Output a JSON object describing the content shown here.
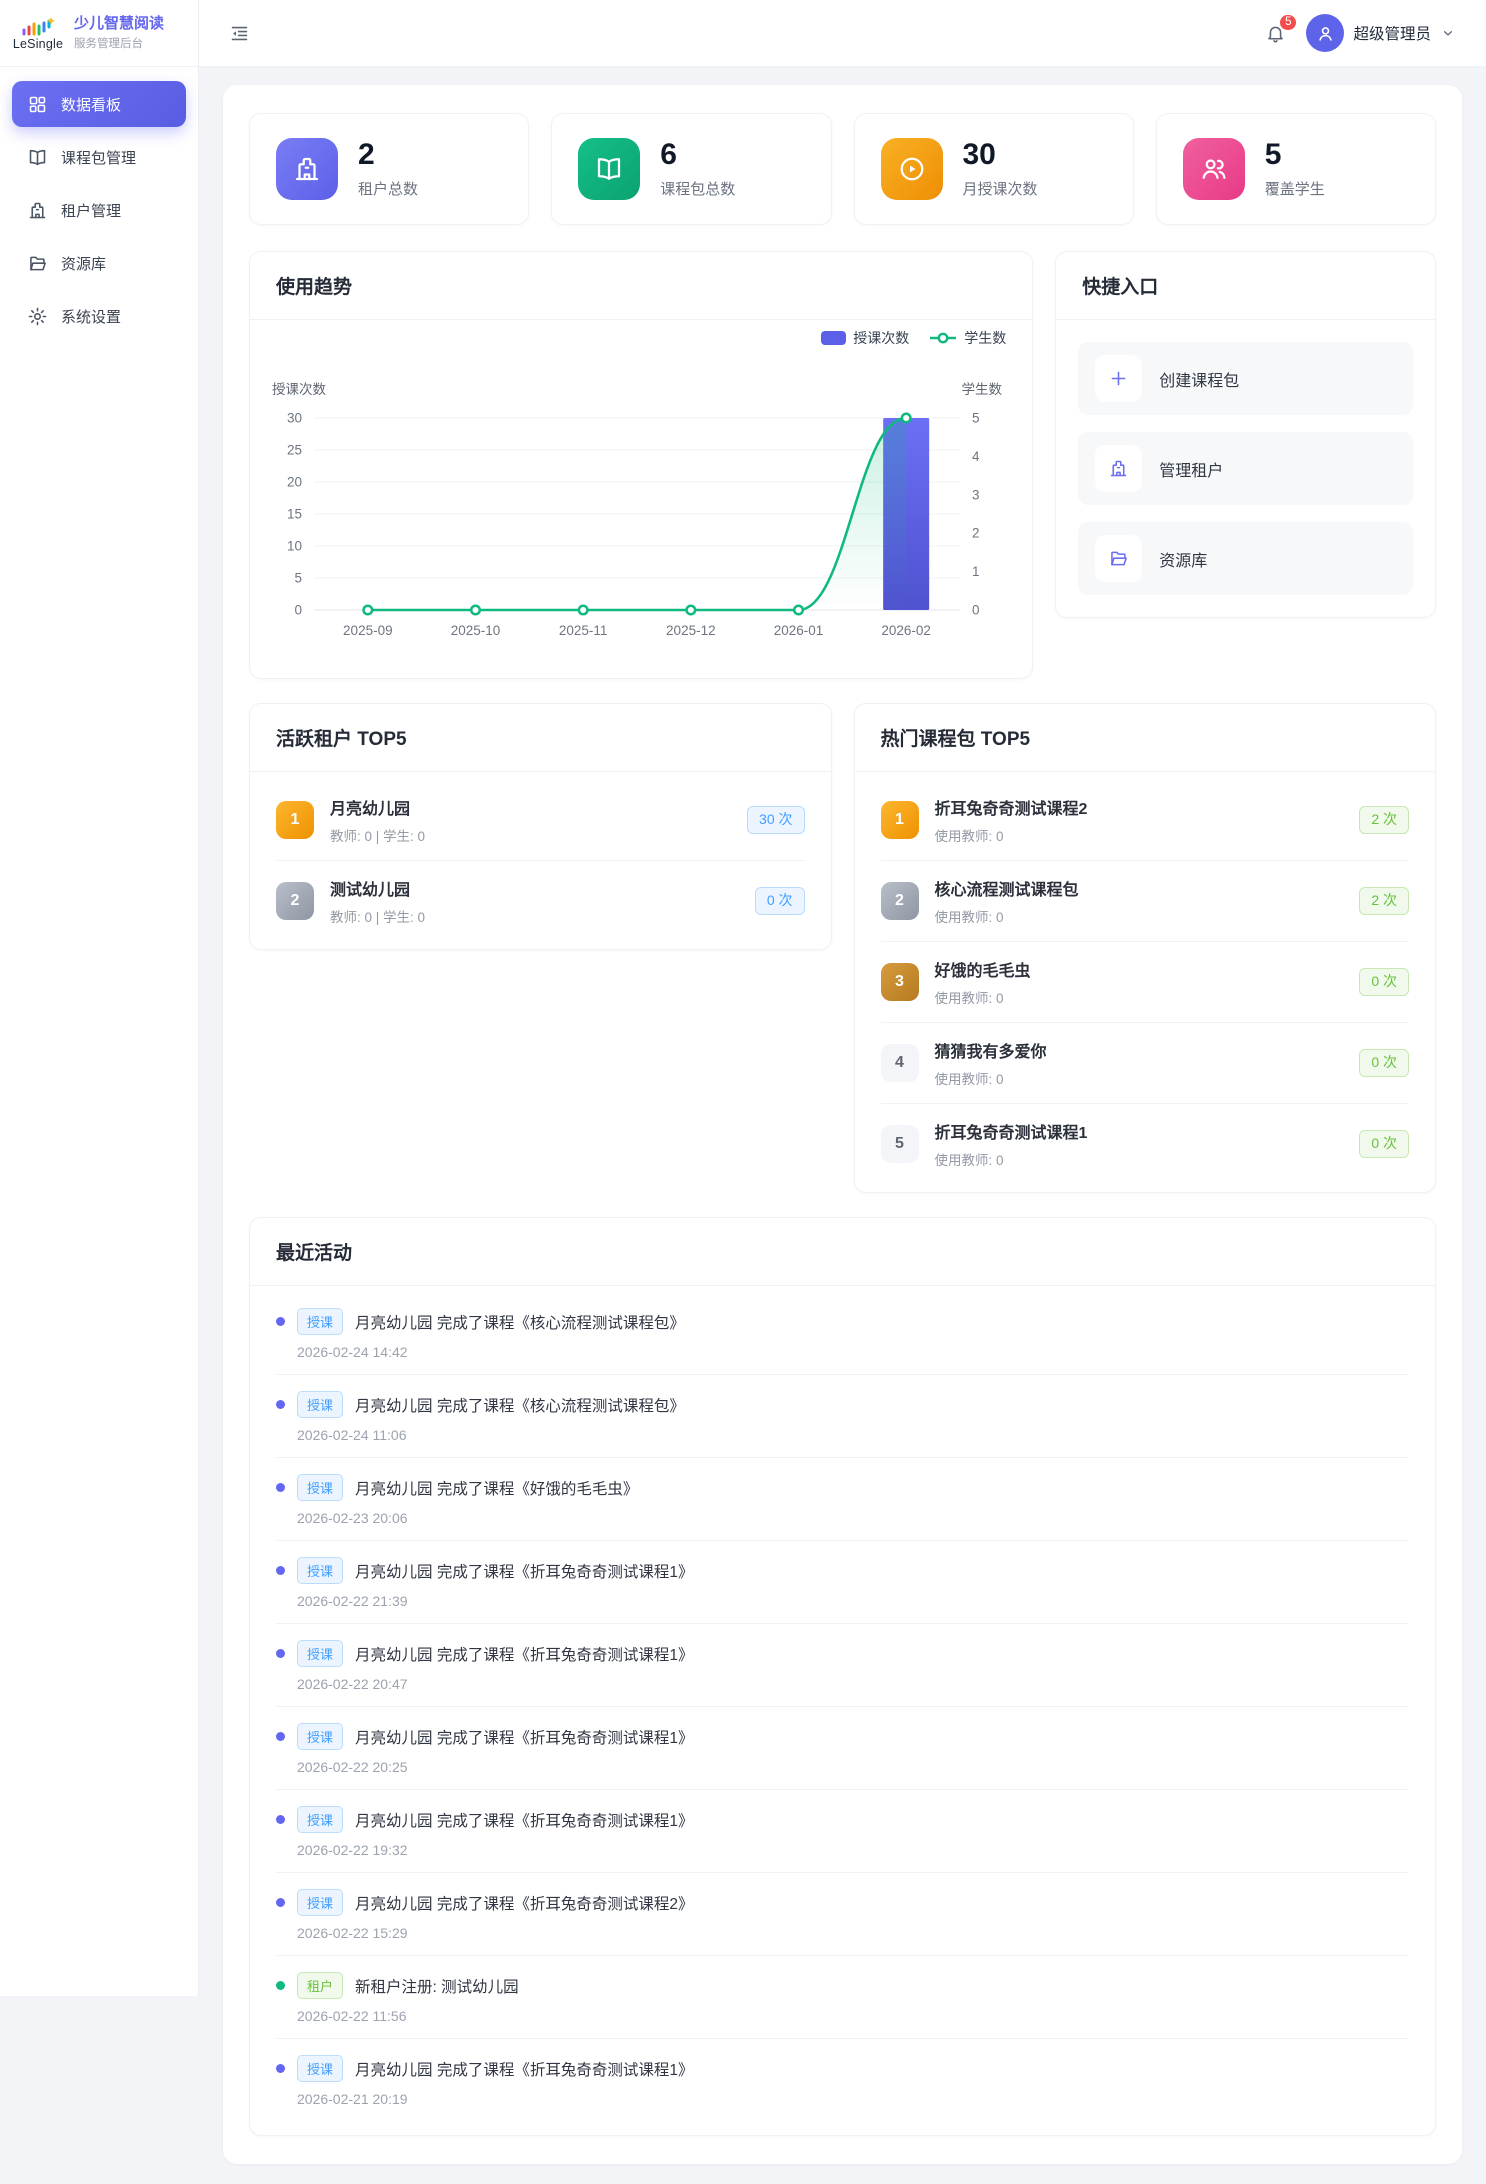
{
  "brand": {
    "logo_text": "LeSingle",
    "title": "少儿智慧阅读",
    "subtitle": "服务管理后台"
  },
  "header": {
    "notification_count": "5",
    "username": "超级管理员"
  },
  "sidebar": {
    "items": [
      {
        "label": "数据看板",
        "icon": "dashboard",
        "active": true
      },
      {
        "label": "课程包管理",
        "icon": "book",
        "active": false
      },
      {
        "label": "租户管理",
        "icon": "building",
        "active": false
      },
      {
        "label": "资源库",
        "icon": "folder",
        "active": false
      },
      {
        "label": "系统设置",
        "icon": "gear",
        "active": false
      }
    ]
  },
  "stats": [
    {
      "value": "2",
      "label": "租户总数",
      "icon": "building",
      "color": "#7a7df4",
      "color2": "#5c60e8"
    },
    {
      "value": "6",
      "label": "课程包总数",
      "icon": "book",
      "color": "#14c08a",
      "color2": "#0ca171"
    },
    {
      "value": "30",
      "label": "月授课次数",
      "icon": "play",
      "color": "#f9b125",
      "color2": "#ee8e04"
    },
    {
      "value": "5",
      "label": "覆盖学生",
      "icon": "users",
      "color": "#f0609f",
      "color2": "#e83a87"
    }
  ],
  "usage_trend": {
    "title": "使用趋势"
  },
  "chart_data": {
    "type": "bar+line",
    "title": "使用趋势",
    "categories": [
      "2025-09",
      "2025-10",
      "2025-11",
      "2025-12",
      "2026-01",
      "2026-02"
    ],
    "series": [
      {
        "name": "授课次数",
        "type": "bar",
        "axis": "left",
        "color": "#5c60e8",
        "values": [
          0,
          0,
          0,
          0,
          0,
          30
        ]
      },
      {
        "name": "学生数",
        "type": "line",
        "axis": "right",
        "color": "#10b981",
        "values": [
          0,
          0,
          0,
          0,
          0,
          5
        ]
      }
    ],
    "left_axis": {
      "name": "授课次数",
      "min": 0,
      "max": 30,
      "ticks": [
        0,
        5,
        10,
        15,
        20,
        25,
        30
      ]
    },
    "right_axis": {
      "name": "学生数",
      "min": 0,
      "max": 5,
      "ticks": [
        0,
        1,
        2,
        3,
        4,
        5
      ]
    },
    "legend_position": "top-right",
    "grid": true
  },
  "quick_entry": {
    "title": "快捷入口",
    "items": [
      {
        "label": "创建课程包",
        "icon": "plus"
      },
      {
        "label": "管理租户",
        "icon": "building"
      },
      {
        "label": "资源库",
        "icon": "folder"
      }
    ]
  },
  "active_tenants": {
    "title": "活跃租户 TOP5",
    "items": [
      {
        "rank": "1",
        "name": "月亮幼儿园",
        "meta": "教师: 0 | 学生: 0",
        "count": "30 次"
      },
      {
        "rank": "2",
        "name": "测试幼儿园",
        "meta": "教师: 0 | 学生: 0",
        "count": "0 次"
      }
    ]
  },
  "hot_packages": {
    "title": "热门课程包 TOP5",
    "items": [
      {
        "rank": "1",
        "name": "折耳兔奇奇测试课程2",
        "meta": "使用教师: 0",
        "count": "2 次"
      },
      {
        "rank": "2",
        "name": "核心流程测试课程包",
        "meta": "使用教师: 0",
        "count": "2 次"
      },
      {
        "rank": "3",
        "name": "好饿的毛毛虫",
        "meta": "使用教师: 0",
        "count": "0 次"
      },
      {
        "rank": "4",
        "name": "猜猜我有多爱你",
        "meta": "使用教师: 0",
        "count": "0 次"
      },
      {
        "rank": "5",
        "name": "折耳兔奇奇测试课程1",
        "meta": "使用教师: 0",
        "count": "0 次"
      }
    ]
  },
  "recent_activities": {
    "title": "最近活动",
    "items": [
      {
        "tag": "授课",
        "type": "primary",
        "message": "月亮幼儿园 完成了课程《核心流程测试课程包》",
        "time": "2026-02-24 14:42"
      },
      {
        "tag": "授课",
        "type": "primary",
        "message": "月亮幼儿园 完成了课程《核心流程测试课程包》",
        "time": "2026-02-24 11:06"
      },
      {
        "tag": "授课",
        "type": "primary",
        "message": "月亮幼儿园 完成了课程《好饿的毛毛虫》",
        "time": "2026-02-23 20:06"
      },
      {
        "tag": "授课",
        "type": "primary",
        "message": "月亮幼儿园 完成了课程《折耳兔奇奇测试课程1》",
        "time": "2026-02-22 21:39"
      },
      {
        "tag": "授课",
        "type": "primary",
        "message": "月亮幼儿园 完成了课程《折耳兔奇奇测试课程1》",
        "time": "2026-02-22 20:47"
      },
      {
        "tag": "授课",
        "type": "primary",
        "message": "月亮幼儿园 完成了课程《折耳兔奇奇测试课程1》",
        "time": "2026-02-22 20:25"
      },
      {
        "tag": "授课",
        "type": "primary",
        "message": "月亮幼儿园 完成了课程《折耳兔奇奇测试课程1》",
        "time": "2026-02-22 19:32"
      },
      {
        "tag": "授课",
        "type": "primary",
        "message": "月亮幼儿园 完成了课程《折耳兔奇奇测试课程2》",
        "time": "2026-02-22 15:29"
      },
      {
        "tag": "租户",
        "type": "success",
        "message": "新租户注册: 测试幼儿园",
        "time": "2026-02-22 11:56"
      },
      {
        "tag": "授课",
        "type": "primary",
        "message": "月亮幼儿园 完成了课程《折耳兔奇奇测试课程1》",
        "time": "2026-02-21 20:19"
      }
    ]
  }
}
